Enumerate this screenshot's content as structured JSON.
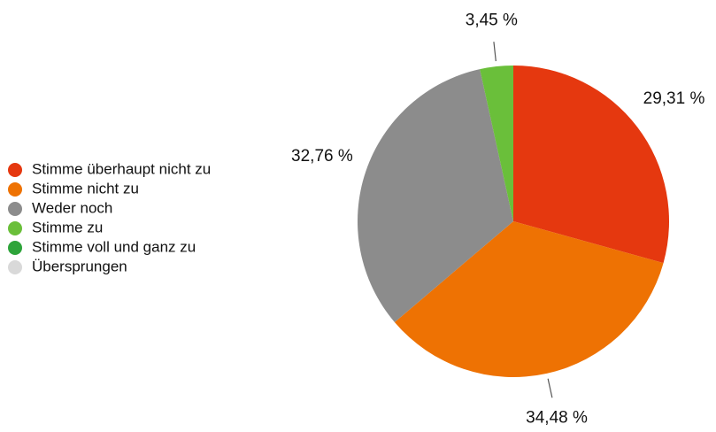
{
  "chart_data": {
    "type": "pie",
    "categories": [
      "Stimme überhaupt nicht zu",
      "Stimme nicht zu",
      "Weder noch",
      "Stimme zu",
      "Stimme voll und ganz zu",
      "Übersprungen"
    ],
    "values": [
      29.31,
      34.48,
      32.76,
      3.45,
      0,
      0
    ],
    "value_labels": [
      "29,31 %",
      "34,48 %",
      "32,76 %",
      "3,45 %",
      null,
      null
    ],
    "colors": [
      "#e5380f",
      "#ee7203",
      "#8c8c8c",
      "#6abf3a",
      "#2ea43a",
      "#d9d9d9"
    ],
    "legend": "left"
  }
}
